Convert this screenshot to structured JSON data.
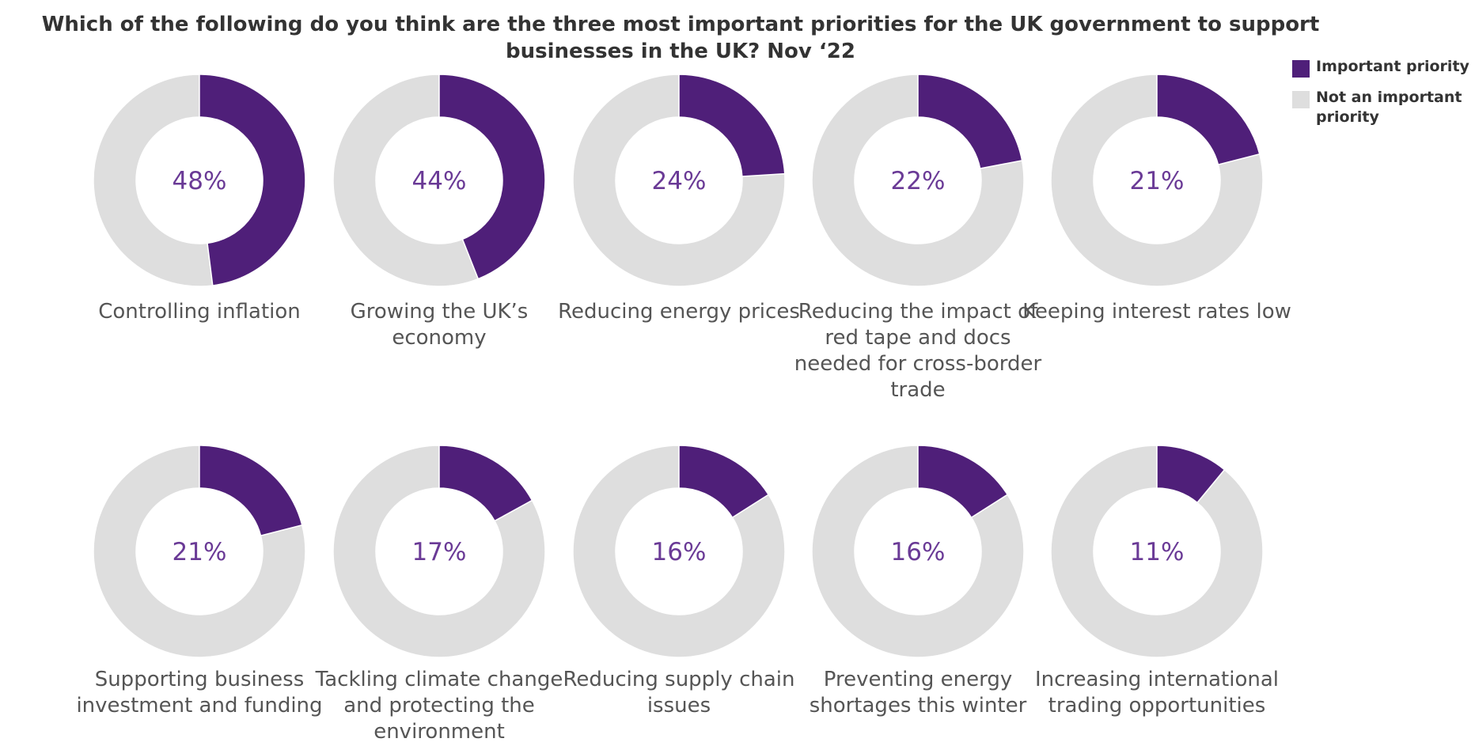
{
  "chart_data": {
    "type": "pie",
    "title": "Which of the following do you think are the three most important priorities for the UK government to support businesses in the UK? Nov ‘22",
    "legend": {
      "position": "top-right",
      "items": [
        {
          "label": "Important priority",
          "color": "#4f1f79"
        },
        {
          "label": "Not an important priority",
          "color": "#dedede"
        }
      ]
    },
    "value_color": "#6a3a96",
    "charts": [
      {
        "label": "Controlling inflation",
        "value": 48,
        "value_label": "48%"
      },
      {
        "label": "Growing the UK’s economy",
        "value": 44,
        "value_label": "44%"
      },
      {
        "label": "Reducing energy prices",
        "value": 24,
        "value_label": "24%"
      },
      {
        "label": "Reducing the impact of red tape and docs needed for cross-border trade",
        "value": 22,
        "value_label": "22%"
      },
      {
        "label": "Keeping interest rates low",
        "value": 21,
        "value_label": "21%"
      },
      {
        "label": "Supporting business investment and funding",
        "value": 21,
        "value_label": "21%"
      },
      {
        "label": "Tackling climate change and protecting the environment",
        "value": 17,
        "value_label": "17%"
      },
      {
        "label": "Reducing supply chain issues",
        "value": 16,
        "value_label": "16%"
      },
      {
        "label": "Preventing energy shortages this winter",
        "value": 16,
        "value_label": "16%"
      },
      {
        "label": "Increasing international trading opportunities",
        "value": 11,
        "value_label": "11%"
      }
    ]
  }
}
